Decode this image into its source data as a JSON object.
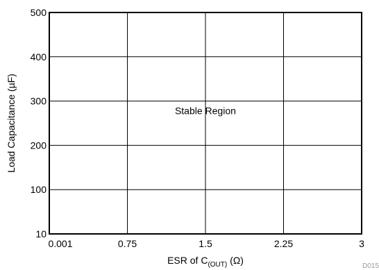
{
  "chart_data": {
    "type": "line",
    "title": "",
    "xlabel_prefix": "ESR of C",
    "xlabel_subscript": "(OUT)",
    "xlabel_suffix": " (Ω)",
    "ylabel": "Load Capacitance (µF)",
    "x_ticks": [
      "0.001",
      "0.75",
      "1.5",
      "2.25",
      "3"
    ],
    "x_tick_values": [
      0.001,
      0.75,
      1.5,
      2.25,
      3
    ],
    "y_ticks": [
      "10",
      "100",
      "200",
      "300",
      "400",
      "500"
    ],
    "y_tick_values": [
      10,
      100,
      200,
      300,
      400,
      500
    ],
    "xlim": [
      0.001,
      3
    ],
    "ylim": [
      10,
      500
    ],
    "grid": true,
    "legend": "none",
    "series": [],
    "annotations": [
      {
        "text": "Stable Region",
        "x": 1.5,
        "y": 300
      }
    ],
    "corner_label": "D015",
    "colors": {
      "axis": "#000000",
      "grid": "#000000",
      "corner_label": "#9a9a9a"
    }
  }
}
